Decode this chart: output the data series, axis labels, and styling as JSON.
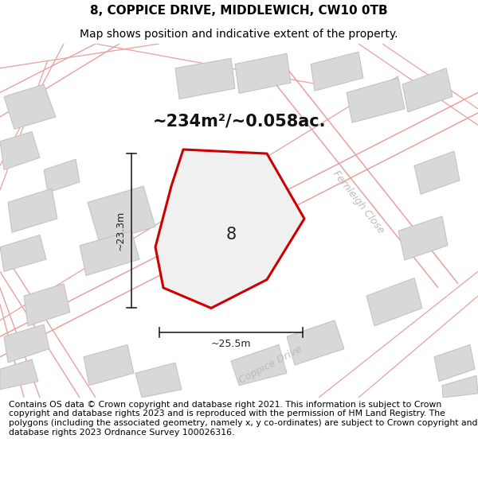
{
  "title": "8, COPPICE DRIVE, MIDDLEWICH, CW10 0TB",
  "subtitle": "Map shows position and indicative extent of the property.",
  "footer": "Contains OS data © Crown copyright and database right 2021. This information is subject to Crown copyright and database rights 2023 and is reproduced with the permission of HM Land Registry. The polygons (including the associated geometry, namely x, y co-ordinates) are subject to Crown copyright and database rights 2023 Ordnance Survey 100026316.",
  "area_text": "~234m²/~0.058ac.",
  "label_8": "8",
  "dim_height": "~23.3m",
  "dim_width": "~25.5m",
  "road_label_1": "Fernleigh Close",
  "road_label_2": "Coppice Drive",
  "map_bg": "#efefef",
  "plot_color": "#cc0000",
  "block_color": "#d8d8d8",
  "block_edge": "#c0c0c0",
  "road_line_color": "#e8a0a0",
  "title_fontsize": 11,
  "subtitle_fontsize": 10,
  "footer_fontsize": 7.8,
  "dim_fontsize": 9,
  "area_fontsize": 15,
  "label_fontsize": 15
}
